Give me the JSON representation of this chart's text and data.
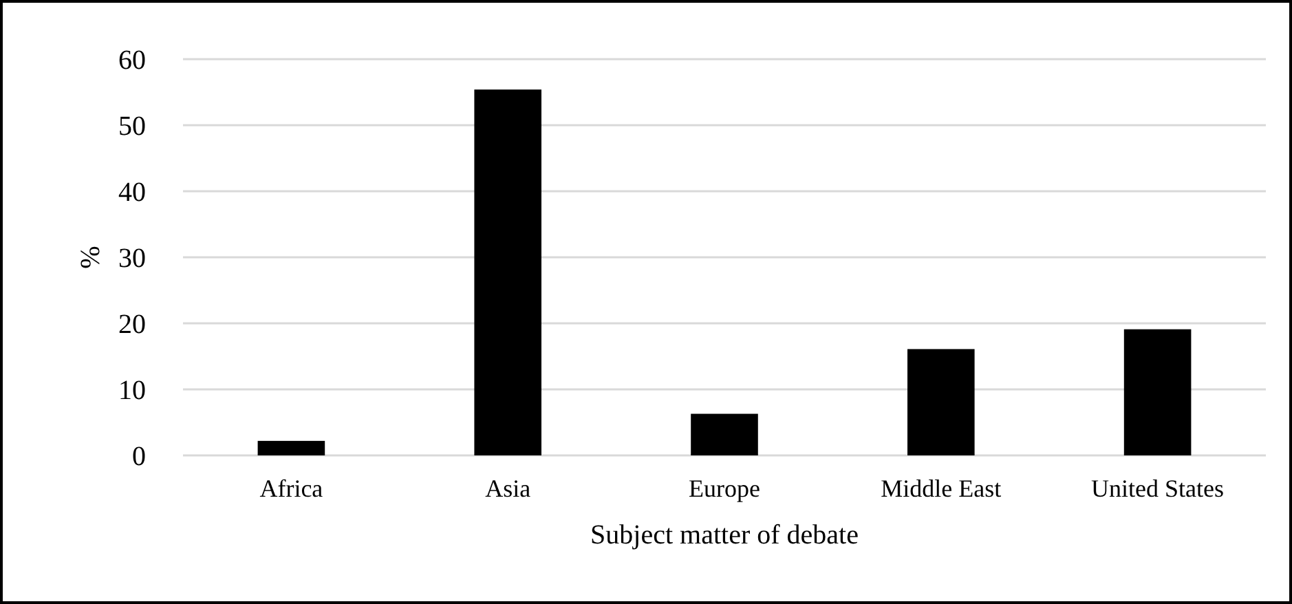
{
  "chart_data": {
    "type": "bar",
    "xlabel": "Subject matter of debate",
    "ylabel": "%",
    "categories": [
      "Africa",
      "Asia",
      "Europe",
      "Middle East",
      "United States"
    ],
    "values": [
      2.2,
      55.4,
      6.3,
      16.1,
      19.1
    ],
    "color": "#000000",
    "ylim": [
      0,
      60
    ],
    "yticks": [
      0,
      10,
      20,
      30,
      40,
      50,
      60
    ],
    "grid": "y"
  }
}
